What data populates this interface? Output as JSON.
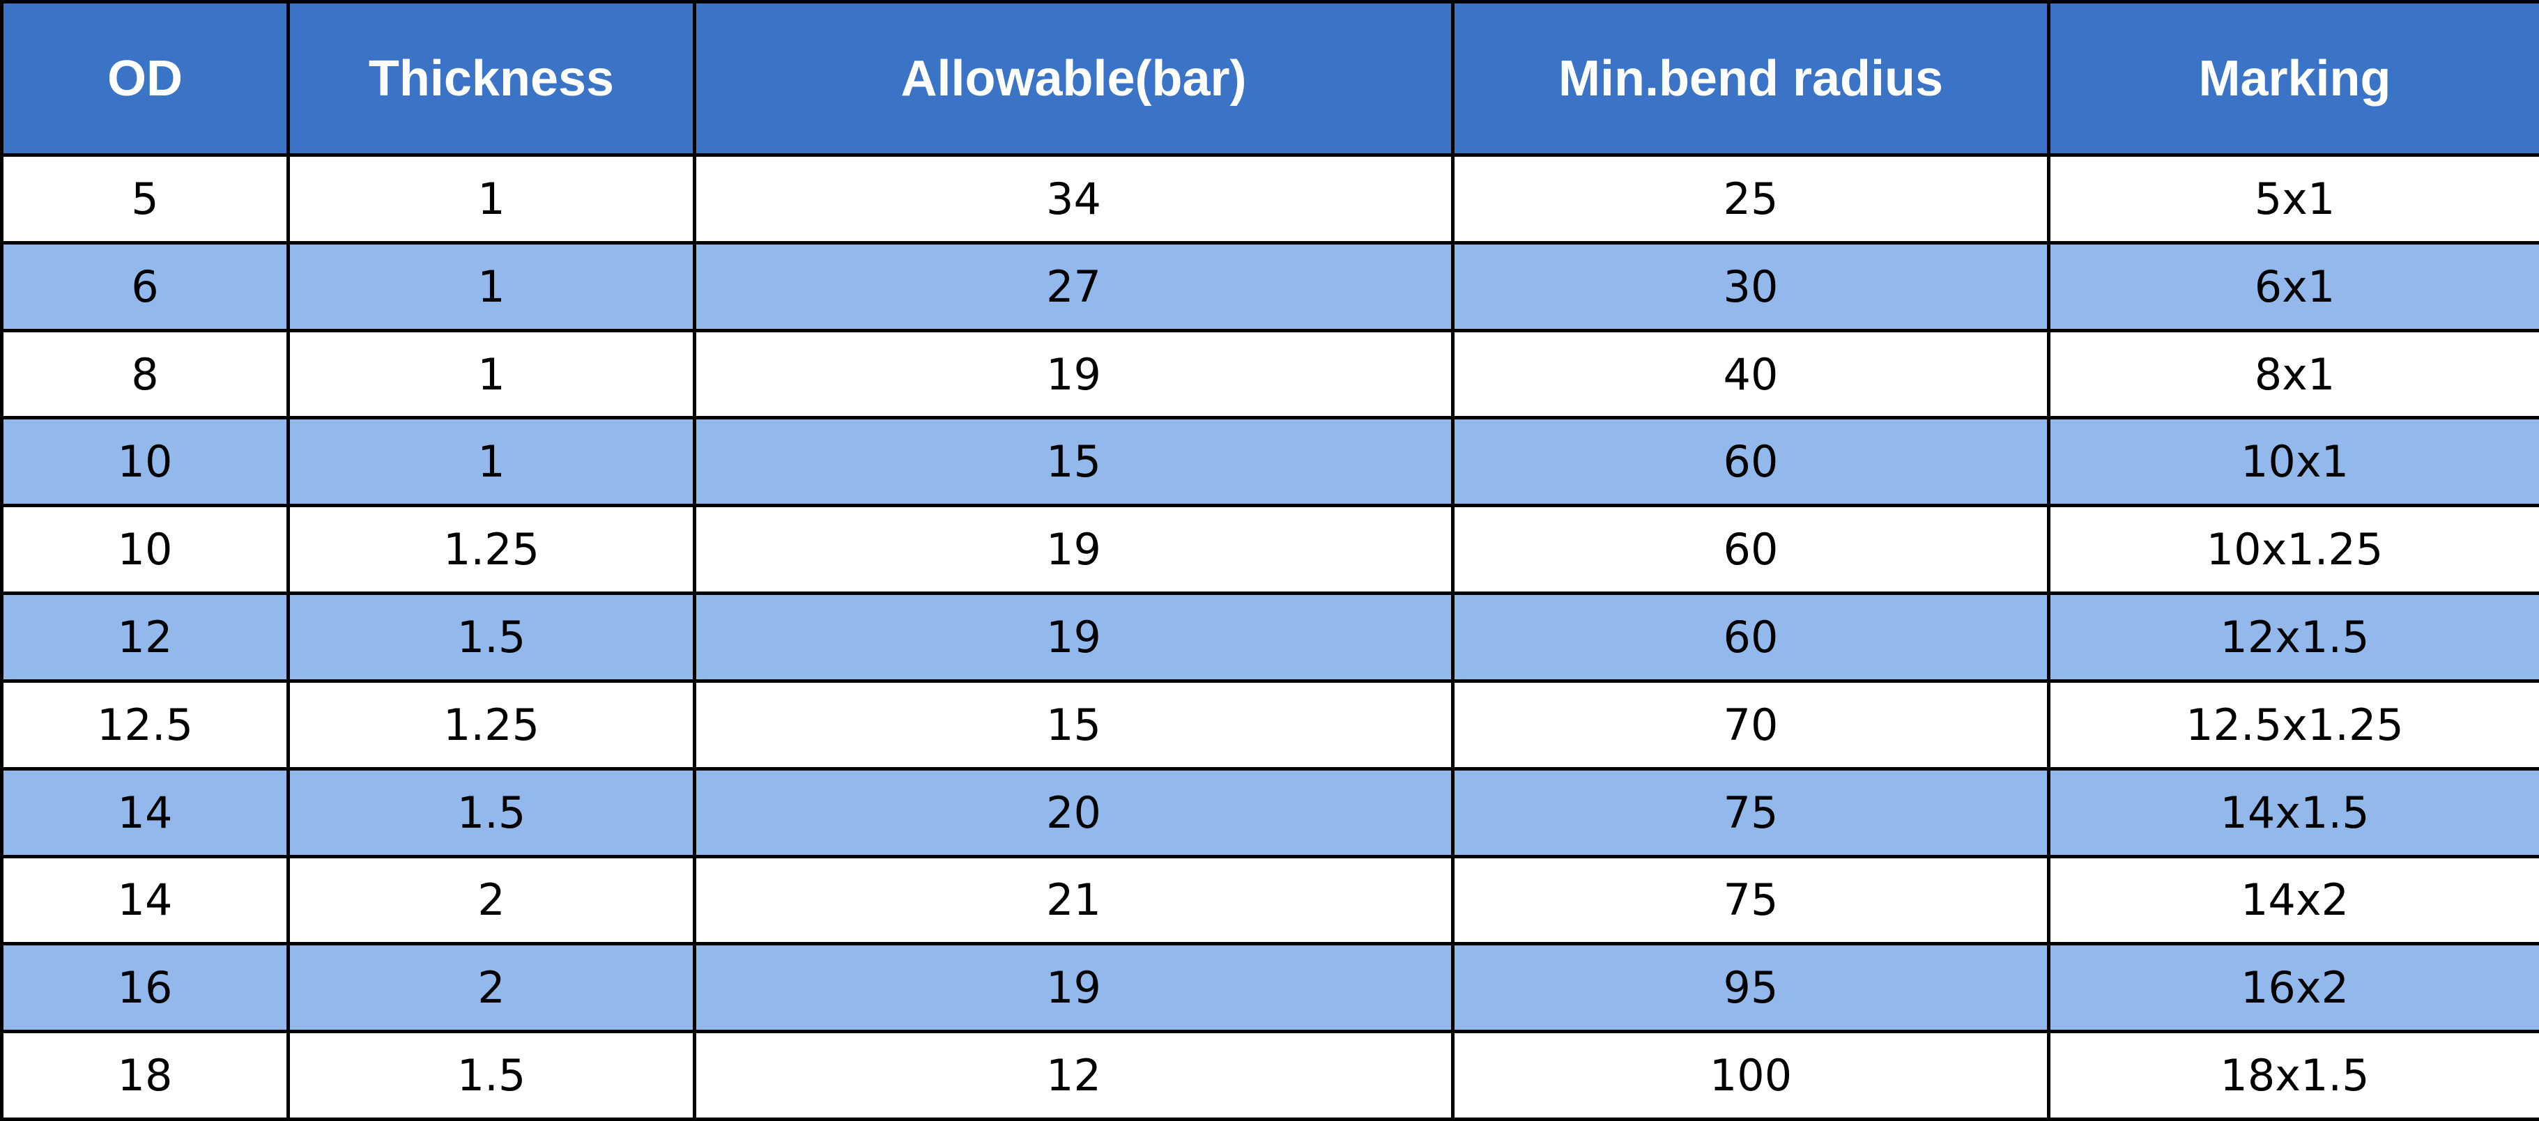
{
  "table": {
    "header": [
      "OD",
      "Thickness",
      "Allowable(bar)",
      "Min.bend radius",
      "Marking"
    ],
    "rows": [
      [
        "5",
        "1",
        "34",
        "25",
        "5x1"
      ],
      [
        "6",
        "1",
        "27",
        "30",
        "6x1"
      ],
      [
        "8",
        "1",
        "19",
        "40",
        "8x1"
      ],
      [
        "10",
        "1",
        "15",
        "60",
        "10x1"
      ],
      [
        "10",
        "1.25",
        "19",
        "60",
        "10x1.25"
      ],
      [
        "12",
        "1.5",
        "19",
        "60",
        "12x1.5"
      ],
      [
        "12.5",
        "1.25",
        "15",
        "70",
        "12.5x1.25"
      ],
      [
        "14",
        "1.5",
        "20",
        "75",
        "14x1.5"
      ],
      [
        "14",
        "2",
        "21",
        "75",
        "14x2"
      ],
      [
        "16",
        "2",
        "19",
        "95",
        "16x2"
      ],
      [
        "18",
        "1.5",
        "12",
        "100",
        "18x1.5"
      ]
    ]
  }
}
